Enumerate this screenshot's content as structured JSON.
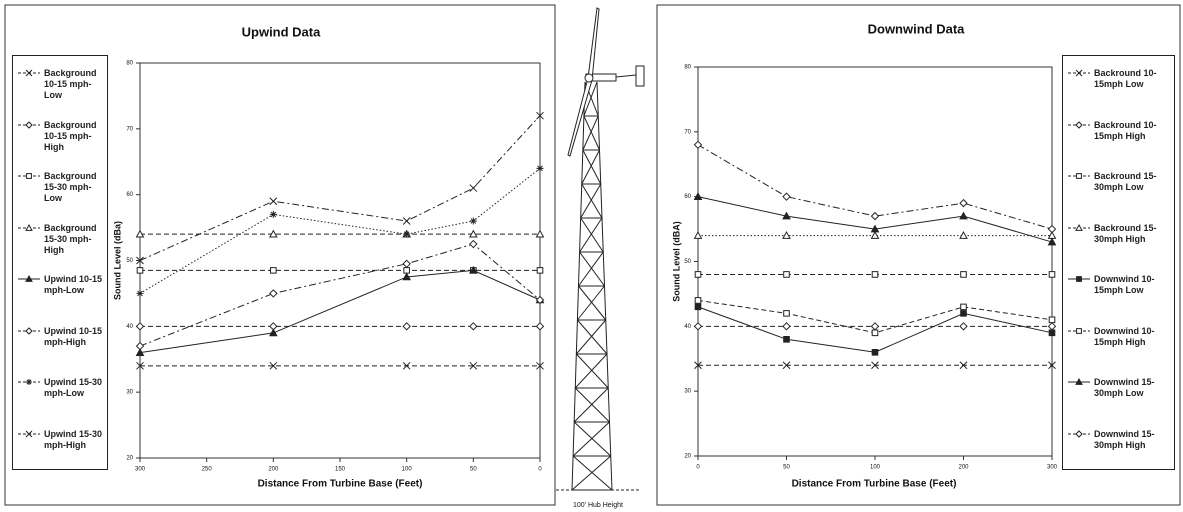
{
  "turbine": {
    "label": "100' Hub Height"
  },
  "chart_data": [
    {
      "type": "line",
      "title": "Upwind Data",
      "x_label": "Distance From Turbine Base (Feet)",
      "y_label": "Sound Level (dBa)",
      "x": [
        300,
        200,
        100,
        50,
        0
      ],
      "xlim": [
        300,
        0
      ],
      "xticks": [
        300,
        250,
        200,
        150,
        100,
        50,
        0
      ],
      "ylim": [
        20,
        80
      ],
      "yticks": [
        20,
        30,
        40,
        50,
        60,
        70,
        80
      ],
      "legend": "left",
      "series": [
        {
          "name": "Background 10-15 mph-Low",
          "color": "#222222",
          "marker": "x",
          "line_style": "dashed",
          "values": [
            34,
            34,
            34,
            34,
            34
          ]
        },
        {
          "name": "Background 10-15 mph-High",
          "color": "#222222",
          "marker": "diamond",
          "line_style": "dashed",
          "values": [
            40,
            40,
            40,
            40,
            40
          ]
        },
        {
          "name": "Background 15-30 mph-Low",
          "color": "#222222",
          "marker": "square",
          "line_style": "dashed",
          "values": [
            48.5,
            48.5,
            48.5,
            48.5,
            48.5
          ]
        },
        {
          "name": "Background 15-30 mph-High",
          "color": "#222222",
          "marker": "triangle",
          "line_style": "dashed",
          "values": [
            54,
            54,
            54,
            54,
            54
          ]
        },
        {
          "name": "Upwind 10-15 mph-Low",
          "color": "#222222",
          "marker": "triangle-filled",
          "line_style": "solid",
          "values": [
            36,
            39,
            47.5,
            48.5,
            44
          ]
        },
        {
          "name": "Upwind 10-15 mph-High",
          "color": "#222222",
          "marker": "diamond",
          "line_style": "dashdot",
          "values": [
            37,
            45,
            49.5,
            52.5,
            44
          ]
        },
        {
          "name": "Upwind 15-30 mph-Low",
          "color": "#222222",
          "marker": "star",
          "line_style": "dotted",
          "values": [
            45,
            57,
            54,
            56,
            64
          ]
        },
        {
          "name": "Upwind 15-30 mph-High",
          "color": "#222222",
          "marker": "x",
          "line_style": "dashdot",
          "values": [
            50,
            59,
            56,
            61,
            72
          ]
        }
      ]
    },
    {
      "type": "line",
      "title": "Downwind  Data",
      "x_label": "Distance From Turbine Base (Feet)",
      "y_label": "Sound Level (dBA)",
      "categories": [
        "0",
        "50",
        "100",
        "200",
        "300"
      ],
      "ylim": [
        20,
        80
      ],
      "yticks": [
        20,
        30,
        40,
        50,
        60,
        70,
        80
      ],
      "legend": "right",
      "series": [
        {
          "name": "Backround 10-15mph Low",
          "color": "#222222",
          "marker": "x",
          "line_style": "dashed",
          "values": [
            34,
            34,
            34,
            34,
            34
          ]
        },
        {
          "name": "Backround 10-15mph High",
          "color": "#222222",
          "marker": "diamond",
          "line_style": "dashed",
          "values": [
            40,
            40,
            40,
            40,
            40
          ]
        },
        {
          "name": "Backround 15-30mph Low",
          "color": "#222222",
          "marker": "square",
          "line_style": "dashed",
          "values": [
            48,
            48,
            48,
            48,
            48
          ]
        },
        {
          "name": "Backround 15-30mph High",
          "color": "#222222",
          "marker": "triangle",
          "line_style": "dotted",
          "values": [
            54,
            54,
            54,
            54,
            54
          ]
        },
        {
          "name": "Downwind 10-15mph Low",
          "color": "#222222",
          "marker": "square-filled",
          "line_style": "solid",
          "values": [
            43,
            38,
            36,
            42,
            39
          ]
        },
        {
          "name": "Downwind 10-15mph High",
          "color": "#222222",
          "marker": "square",
          "line_style": "dashed",
          "values": [
            44,
            42,
            39,
            43,
            41
          ]
        },
        {
          "name": "Downwind 15-30mph Low",
          "color": "#222222",
          "marker": "triangle-filled",
          "line_style": "solid",
          "values": [
            60,
            57,
            55,
            57,
            53
          ]
        },
        {
          "name": "Downwind 15-30mph High",
          "color": "#222222",
          "marker": "diamond",
          "line_style": "dashdot",
          "values": [
            68,
            60,
            57,
            59,
            55
          ]
        }
      ]
    }
  ]
}
